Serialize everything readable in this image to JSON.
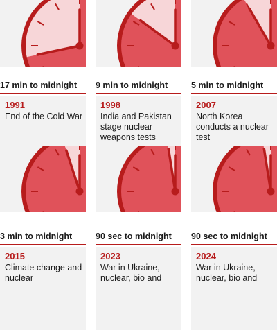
{
  "colors": {
    "accent": "#b71c1c",
    "face": "#e0525a",
    "wedge": "#f7d6d8",
    "panel": "#f2f2f2"
  },
  "panels": [
    {
      "label": "17 min to midnight",
      "year": "1991",
      "description": "End of the Cold War",
      "minutes_to_midnight": 17
    },
    {
      "label": "9 min to midnight",
      "year": "1998",
      "description": "India and Pakistan stage nuclear weapons tests",
      "minutes_to_midnight": 9
    },
    {
      "label": "5 min to midnight",
      "year": "2007",
      "description": "North Korea conducts a nuclear test",
      "minutes_to_midnight": 5
    },
    {
      "label": "3 min to midnight",
      "year": "2015",
      "description": "Climate change and nuclear",
      "minutes_to_midnight": 3
    },
    {
      "label": "90 sec to midnight",
      "year": "2023",
      "description": "War in Ukraine, nuclear, bio and",
      "minutes_to_midnight": 1.5
    },
    {
      "label": "90 sec to midnight",
      "year": "2024",
      "description": "War in Ukraine, nuclear, bio and",
      "minutes_to_midnight": 1.5
    }
  ]
}
